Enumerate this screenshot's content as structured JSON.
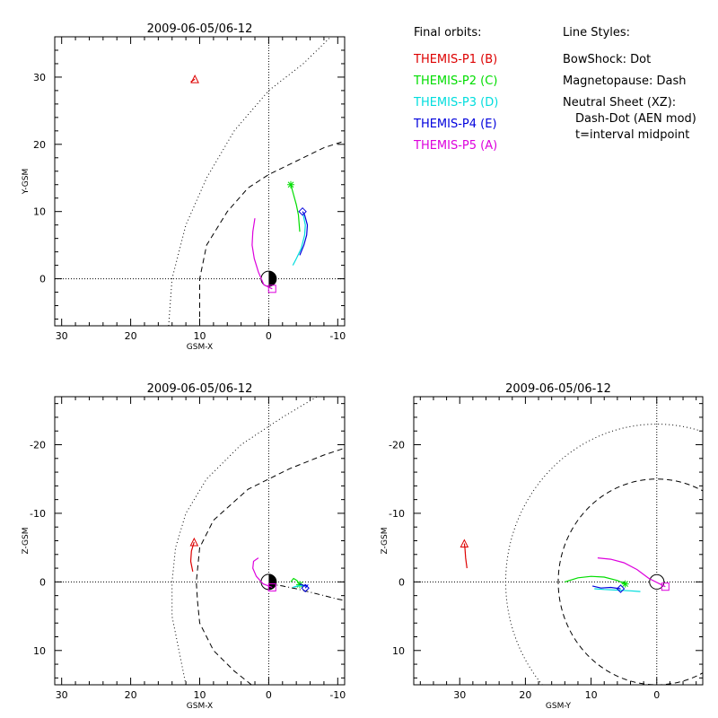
{
  "legend": {
    "orbits_title": "Final orbits:",
    "probes": [
      {
        "label": "THEMIS-P1 (B)",
        "color": "#dd0000"
      },
      {
        "label": "THEMIS-P2 (C)",
        "color": "#00dd00"
      },
      {
        "label": "THEMIS-P3 (D)",
        "color": "#00dddd"
      },
      {
        "label": "THEMIS-P4 (E)",
        "color": "#0000dd"
      },
      {
        "label": "THEMIS-P5 (A)",
        "color": "#dd00dd"
      }
    ],
    "styles_title": "Line Styles:",
    "styles": [
      "BowShock: Dot",
      "Magnetopause: Dash",
      "Neutral Sheet (XZ):",
      "Dash-Dot (AEN mod)",
      "t=interval midpoint"
    ]
  },
  "chart_data": [
    {
      "type": "line",
      "title": "2009-06-05/06-12",
      "xlabel": "GSM-X",
      "ylabel": "Y-GSM",
      "xlim": [
        31,
        -11
      ],
      "ylim": [
        36,
        -7
      ],
      "xticks": [
        30,
        20,
        10,
        0,
        -10
      ],
      "yticks": [
        0,
        10,
        20,
        30
      ],
      "grid": false,
      "boundaries": [
        {
          "name": "BowShock",
          "style": "dotted",
          "points": [
            [
              14.5,
              -7
            ],
            [
              14,
              0
            ],
            [
              12,
              8
            ],
            [
              9,
              15
            ],
            [
              5,
              22
            ],
            [
              0,
              28
            ],
            [
              -5,
              32
            ],
            [
              -9,
              36
            ]
          ]
        },
        {
          "name": "Magnetopause",
          "style": "dashed",
          "points": [
            [
              10,
              -7
            ],
            [
              10,
              0
            ],
            [
              9,
              5
            ],
            [
              6,
              10
            ],
            [
              3,
              13.5
            ],
            [
              0,
              15.5
            ],
            [
              -4,
              17.5
            ],
            [
              -8,
              19.5
            ],
            [
              -11,
              20.5
            ]
          ]
        }
      ],
      "series": [
        {
          "name": "THEMIS-P1 (B)",
          "color": "#dd0000",
          "marker": "triangle",
          "points": [
            [
              11.3,
              29.3
            ],
            [
              10.7,
              29.7
            ]
          ]
        },
        {
          "name": "THEMIS-P2 (C)",
          "color": "#00dd00",
          "marker": "asterisk",
          "points": [
            [
              -4.5,
              7
            ],
            [
              -4.3,
              9.5
            ],
            [
              -4,
              11
            ],
            [
              -3.6,
              12.5
            ],
            [
              -3.2,
              14
            ]
          ]
        },
        {
          "name": "THEMIS-P3 (D)",
          "color": "#00dddd",
          "marker": "",
          "points": [
            [
              -3.5,
              2
            ],
            [
              -4,
              3
            ],
            [
              -4.7,
              4.5
            ],
            [
              -5.2,
              6.5
            ],
            [
              -5.3,
              8
            ],
            [
              -5,
              9.5
            ]
          ]
        },
        {
          "name": "THEMIS-P4 (E)",
          "color": "#0000dd",
          "marker": "diamond",
          "points": [
            [
              -4.5,
              3.5
            ],
            [
              -5.1,
              5
            ],
            [
              -5.5,
              6.5
            ],
            [
              -5.6,
              8
            ],
            [
              -5.2,
              9.5
            ],
            [
              -4.9,
              10
            ]
          ]
        },
        {
          "name": "THEMIS-P5 (A)",
          "color": "#dd00dd",
          "marker": "square",
          "points": [
            [
              2,
              9
            ],
            [
              2.3,
              7
            ],
            [
              2.4,
              5
            ],
            [
              2.1,
              3
            ],
            [
              1.5,
              1
            ],
            [
              0.7,
              -0.9
            ],
            [
              -0.5,
              -1.5
            ]
          ]
        }
      ]
    },
    {
      "type": "line",
      "title": "2009-06-05/06-12",
      "xlabel": "GSM-X",
      "ylabel": "Z-GSM",
      "xlim": [
        31,
        -11
      ],
      "ylim": [
        -27,
        15
      ],
      "xticks": [
        30,
        20,
        10,
        0,
        -10
      ],
      "yticks": [
        10,
        0,
        -10,
        -20
      ],
      "grid": false,
      "boundaries": [
        {
          "name": "BowShock",
          "style": "dotted",
          "points": [
            [
              12,
              15
            ],
            [
              13,
              10
            ],
            [
              14,
              5
            ],
            [
              14,
              0
            ],
            [
              13.5,
              -5
            ],
            [
              12,
              -10
            ],
            [
              9,
              -15
            ],
            [
              4,
              -20
            ],
            [
              -2,
              -24
            ],
            [
              -7,
              -27
            ]
          ]
        },
        {
          "name": "Magnetopause",
          "style": "dashed",
          "points": [
            [
              2.5,
              15
            ],
            [
              5,
              13
            ],
            [
              8,
              10
            ],
            [
              10,
              6
            ],
            [
              10.3,
              3
            ],
            [
              10.5,
              0
            ],
            [
              10,
              -5
            ],
            [
              8,
              -9
            ],
            [
              3,
              -13.5
            ],
            [
              -3,
              -16.5
            ],
            [
              -8,
              -18.5
            ],
            [
              -11,
              -19.5
            ]
          ]
        },
        {
          "name": "Neutral Sheet",
          "style": "dashdot",
          "points": [
            [
              0,
              0.3
            ],
            [
              -2,
              0.6
            ],
            [
              -4,
              1
            ],
            [
              -6,
              1.5
            ],
            [
              -8,
              2
            ],
            [
              -10,
              2.5
            ],
            [
              -11,
              2.7
            ]
          ]
        }
      ],
      "series": [
        {
          "name": "THEMIS-P1 (B)",
          "color": "#dd0000",
          "marker": "triangle",
          "points": [
            [
              11,
              -1.5
            ],
            [
              11.3,
              -3
            ],
            [
              11.2,
              -4.5
            ],
            [
              10.8,
              -5.8
            ]
          ]
        },
        {
          "name": "THEMIS-P2 (C)",
          "color": "#00dd00",
          "marker": "asterisk",
          "points": [
            [
              -3.2,
              0
            ],
            [
              -3.6,
              -0.5
            ],
            [
              -4.1,
              -0.2
            ],
            [
              -4.5,
              0.4
            ]
          ]
        },
        {
          "name": "THEMIS-P3 (D)",
          "color": "#00dddd",
          "marker": "",
          "points": [
            [
              -3.5,
              0.8
            ],
            [
              -4.2,
              0.6
            ],
            [
              -5,
              0.5
            ],
            [
              -5.6,
              0.7
            ]
          ]
        },
        {
          "name": "THEMIS-P4 (E)",
          "color": "#0000dd",
          "marker": "diamond",
          "points": [
            [
              -4.5,
              0.3
            ],
            [
              -5.2,
              0.6
            ],
            [
              -5.6,
              0.5
            ],
            [
              -5.3,
              0.9
            ]
          ]
        },
        {
          "name": "THEMIS-P5 (A)",
          "color": "#dd00dd",
          "marker": "square",
          "points": [
            [
              1.5,
              -3.5
            ],
            [
              2.2,
              -3
            ],
            [
              2.3,
              -2
            ],
            [
              1.8,
              -0.8
            ],
            [
              0.8,
              0.3
            ],
            [
              -0.5,
              0.8
            ]
          ]
        }
      ]
    },
    {
      "type": "line",
      "title": "2009-06-05/06-12",
      "xlabel": "GSM-Y",
      "ylabel": "Z-GSM",
      "xlim": [
        37,
        -7
      ],
      "ylim": [
        -27,
        15
      ],
      "xticks": [
        30,
        20,
        10,
        0
      ],
      "yticks": [
        10,
        0,
        -10,
        -20
      ],
      "grid": false,
      "boundaries": [
        {
          "name": "BowShock",
          "style": "dotted",
          "circle": {
            "cx": 0,
            "cy": 0,
            "r": 23
          }
        },
        {
          "name": "Magnetopause",
          "style": "dashed",
          "circle": {
            "cx": 0,
            "cy": 0,
            "r": 15
          }
        }
      ],
      "series": [
        {
          "name": "THEMIS-P1 (B)",
          "color": "#dd0000",
          "marker": "triangle",
          "points": [
            [
              28.9,
              -2
            ],
            [
              29.1,
              -3.5
            ],
            [
              29.2,
              -4.8
            ],
            [
              29.3,
              -5.6
            ]
          ]
        },
        {
          "name": "THEMIS-P2 (C)",
          "color": "#00dd00",
          "marker": "asterisk",
          "points": [
            [
              14,
              0
            ],
            [
              12,
              -0.6
            ],
            [
              10,
              -0.8
            ],
            [
              8,
              -0.7
            ],
            [
              6,
              -0.2
            ],
            [
              4.8,
              0.3
            ]
          ]
        },
        {
          "name": "THEMIS-P3 (D)",
          "color": "#00dddd",
          "marker": "",
          "points": [
            [
              9.5,
              1
            ],
            [
              8,
              1.1
            ],
            [
              6,
              1.2
            ],
            [
              4,
              1.3
            ],
            [
              2.5,
              1.4
            ]
          ]
        },
        {
          "name": "THEMIS-P4 (E)",
          "color": "#0000dd",
          "marker": "diamond",
          "points": [
            [
              9.8,
              0.6
            ],
            [
              8.5,
              0.9
            ],
            [
              7,
              0.8
            ],
            [
              5.5,
              1
            ]
          ]
        },
        {
          "name": "THEMIS-P5 (A)",
          "color": "#dd00dd",
          "marker": "square",
          "points": [
            [
              9,
              -3.5
            ],
            [
              7,
              -3.3
            ],
            [
              5,
              -2.8
            ],
            [
              3,
              -1.8
            ],
            [
              1.2,
              -0.5
            ],
            [
              -1.3,
              0.7
            ]
          ]
        }
      ]
    }
  ]
}
